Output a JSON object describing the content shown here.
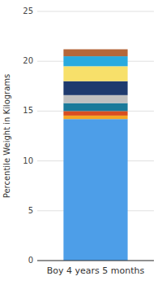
{
  "chart_data": {
    "type": "bar",
    "stacked": true,
    "categories": [
      "Boy 4 years 5 months"
    ],
    "series": [
      {
        "color": "#4D9EE8",
        "values": [
          14.2
        ]
      },
      {
        "color": "#F5A623",
        "values": [
          0.35
        ]
      },
      {
        "color": "#D94E1F",
        "values": [
          0.45
        ]
      },
      {
        "color": "#1A7A9A",
        "values": [
          0.8
        ]
      },
      {
        "color": "#C0C0C0",
        "values": [
          0.8
        ]
      },
      {
        "color": "#1E3A6E",
        "values": [
          1.4
        ]
      },
      {
        "color": "#F7E06A",
        "values": [
          1.5
        ]
      },
      {
        "color": "#29AADF",
        "values": [
          1.0
        ]
      },
      {
        "color": "#B5673A",
        "values": [
          0.7
        ]
      }
    ],
    "ylabel": "Percentile Weight in Kilograms",
    "ylim": [
      0,
      25
    ],
    "yticks": [
      0,
      5,
      10,
      15,
      20,
      25
    ],
    "grid": true
  }
}
